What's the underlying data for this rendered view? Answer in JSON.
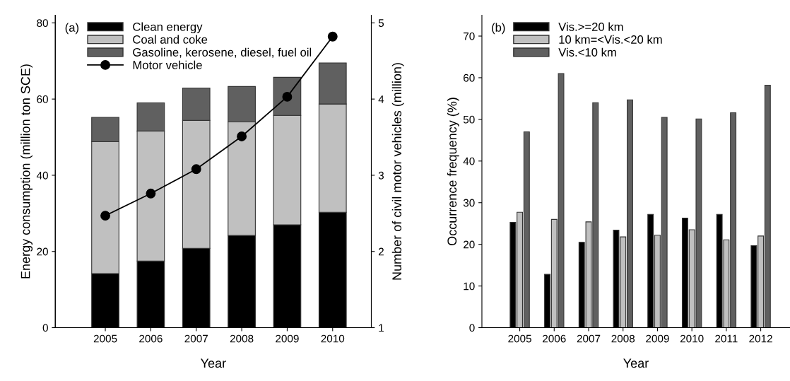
{
  "chart_data": [
    {
      "type": "bar",
      "stacked": true,
      "xlabel": "Year",
      "ylabel": "Energy consumption (million ton SCE)",
      "y2label": "Number of civil motor vehicles (million)",
      "annotations": [
        "(a)"
      ],
      "categories": [
        "2005",
        "2006",
        "2007",
        "2008",
        "2009",
        "2010"
      ],
      "series": [
        {
          "name": "Clean energy",
          "color": "#000000",
          "values": [
            14.2,
            17.5,
            20.8,
            24.2,
            27.0,
            30.3
          ]
        },
        {
          "name": "Coal and coke",
          "color": "#c0c0c0",
          "values": [
            34.6,
            34.1,
            33.6,
            29.8,
            28.7,
            28.4
          ]
        },
        {
          "name": "Gasoline, kerosene, diesel, fuel oil",
          "color": "#606060",
          "values": [
            6.4,
            7.4,
            8.5,
            9.3,
            10.0,
            10.8
          ]
        },
        {
          "name": "Motor vehicle",
          "type": "line",
          "axis": "y2",
          "color": "#000000",
          "marker": "circle",
          "values": [
            2.47,
            2.76,
            3.08,
            3.51,
            4.03,
            4.82
          ]
        }
      ],
      "ylim": [
        0,
        82
      ],
      "yticks": [
        0,
        20,
        40,
        60,
        80
      ],
      "y2lim": [
        1,
        5.1
      ],
      "y2ticks": [
        1,
        2,
        3,
        4,
        5
      ],
      "legend": "top left",
      "grid": false
    },
    {
      "type": "bar",
      "xlabel": "Year",
      "ylabel": "Occurrence frequency (%)",
      "annotations": [
        "(b)"
      ],
      "categories": [
        "2005",
        "2006",
        "2007",
        "2008",
        "2009",
        "2010",
        "2011",
        "2012"
      ],
      "series": [
        {
          "name": "Vis.>=20 km",
          "color": "#000000",
          "values": [
            25.3,
            12.8,
            20.5,
            23.4,
            27.2,
            26.3,
            27.2,
            19.7
          ]
        },
        {
          "name": "10 km=<Vis.<20 km",
          "color": "#c0c0c0",
          "values": [
            27.7,
            26.0,
            25.4,
            21.8,
            22.2,
            23.5,
            21.1,
            22.0
          ]
        },
        {
          "name": "Vis.<10 km",
          "color": "#606060",
          "values": [
            47.0,
            61.0,
            54.0,
            54.7,
            50.5,
            50.1,
            51.6,
            58.2
          ]
        }
      ],
      "ylim": [
        0,
        75
      ],
      "yticks": [
        0,
        10,
        20,
        30,
        40,
        50,
        60,
        70
      ],
      "legend": "top left",
      "grid": false
    }
  ]
}
